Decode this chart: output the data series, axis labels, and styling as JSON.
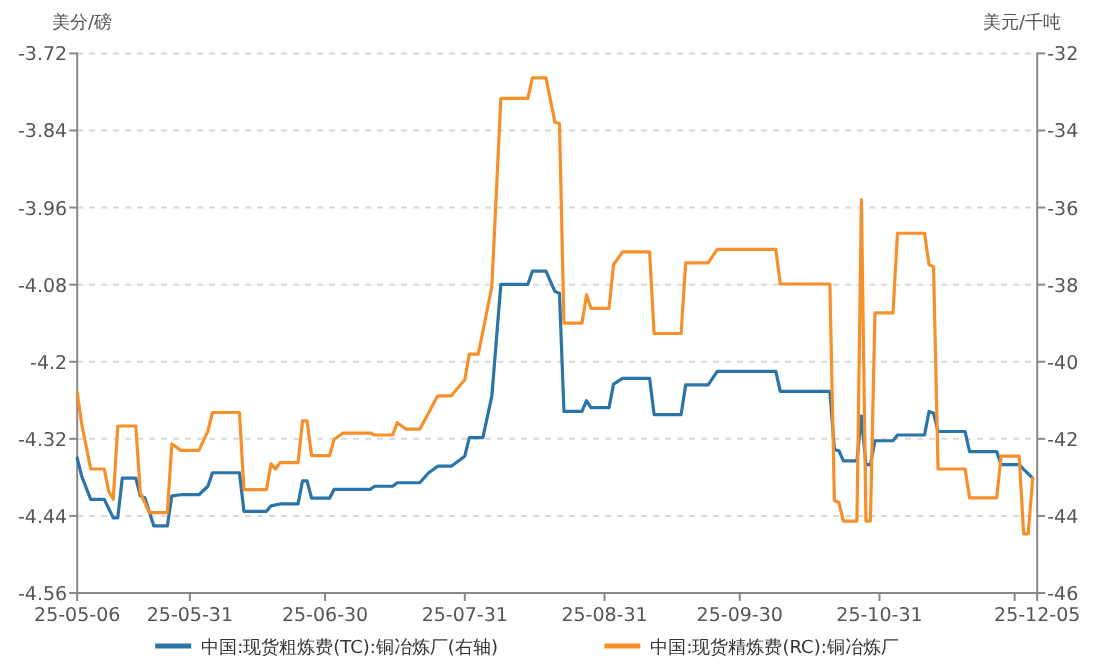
{
  "chart_data": {
    "type": "line",
    "ylabel": "美分/磅",
    "y2label": "美元/千吨",
    "xlim": [
      "--05-06",
      "--12-05"
    ],
    "xticks": [
      {
        "value": "--05-06",
        "label": "25-05-06"
      },
      {
        "value": "--05-31",
        "label": "25-05-31"
      },
      {
        "value": "--06-30",
        "label": "25-06-30"
      },
      {
        "value": "--07-31",
        "label": "25-07-31"
      },
      {
        "value": "--08-31",
        "label": "25-08-31"
      },
      {
        "value": "--09-30",
        "label": "25-09-30"
      },
      {
        "value": "--10-31",
        "label": "25-10-31"
      },
      {
        "value": "--11-30",
        "label": null
      },
      {
        "value": "--12-05",
        "label": "25-12-05"
      }
    ],
    "ylim": [
      -4.56,
      -3.72
    ],
    "yticks": [
      -4.56,
      -4.44,
      -4.32,
      -4.2,
      -4.08,
      -3.96,
      -3.84,
      -3.72
    ],
    "y2lim": [
      -46,
      -32
    ],
    "y2ticks": [
      -46,
      -44,
      -42,
      -40,
      -38,
      -36,
      -34,
      -32
    ],
    "grid": "y",
    "legend": "bottom",
    "series": [
      {
        "name": "中国:现货粗炼费(TC):铜冶炼厂(右轴)",
        "color": "#2a74a8",
        "axis": "y2",
        "x": [
          "--05-06",
          "--05-07",
          "--05-09",
          "--05-12",
          "--05-14",
          "--05-15",
          "--05-16",
          "--05-19",
          "--05-20",
          "--05-21",
          "--05-23",
          "--05-26",
          "--05-27",
          "--05-29",
          "--06-02",
          "--06-04",
          "--06-05",
          "--06-11",
          "--06-12",
          "--06-17",
          "--06-18",
          "--06-20",
          "--06-24",
          "--06-25",
          "--06-26",
          "--06-27",
          "--07-01",
          "--07-02",
          "--07-10",
          "--07-11",
          "--07-15",
          "--07-16",
          "--07-21",
          "--07-23",
          "--07-25",
          "--07-28",
          "--07-31",
          "--08-01",
          "--08-04",
          "--08-06",
          "--08-08",
          "--08-14",
          "--08-15",
          "--08-18",
          "--08-20",
          "--08-21",
          "--08-22",
          "--08-26",
          "--08-27",
          "--08-28",
          "--09-01",
          "--09-02",
          "--09-04",
          "--09-10",
          "--09-11",
          "--09-17",
          "--09-18",
          "--09-23",
          "--09-25",
          "--10-08",
          "--10-09",
          "--10-20",
          "--10-21",
          "--10-22",
          "--10-23",
          "--10-26",
          "--10-27",
          "--10-28",
          "--10-29",
          "--10-30",
          "--11-03",
          "--11-04",
          "--11-10",
          "--11-11",
          "--11-12",
          "--11-13",
          "--11-19",
          "--11-20",
          "--11-26",
          "--11-27",
          "--12-01",
          "--12-02",
          "--12-04"
        ],
        "values": [
          -42.5,
          -42.97,
          -43.57,
          -43.57,
          -44.05,
          -44.05,
          -43.02,
          -43.02,
          -43.48,
          -43.53,
          -44.26,
          -44.26,
          -43.48,
          -43.45,
          -43.45,
          -43.23,
          -42.88,
          -42.88,
          -43.88,
          -43.88,
          -43.74,
          -43.69,
          -43.69,
          -43.09,
          -43.09,
          -43.54,
          -43.54,
          -43.31,
          -43.31,
          -43.23,
          -43.23,
          -43.14,
          -43.14,
          -42.88,
          -42.71,
          -42.71,
          -42.45,
          -41.97,
          -41.97,
          -40.89,
          -37.99,
          -37.99,
          -37.65,
          -37.65,
          -38.18,
          -38.22,
          -41.29,
          -41.29,
          -41.01,
          -41.19,
          -41.19,
          -40.58,
          -40.43,
          -40.43,
          -41.37,
          -41.37,
          -40.6,
          -40.6,
          -40.25,
          -40.25,
          -40.77,
          -40.77,
          -42.28,
          -42.31,
          -42.57,
          -42.57,
          -41.41,
          -42.67,
          -42.67,
          -42.05,
          -42.05,
          -41.9,
          -41.9,
          -41.29,
          -41.33,
          -41.81,
          -41.81,
          -42.33,
          -42.33,
          -42.67,
          -42.67,
          -42.79,
          -43.02
        ]
      },
      {
        "name": "中国:现货精炼费(RC):铜冶炼厂",
        "color": "#f7902a",
        "x": [
          "--05-06",
          "--05-07",
          "--05-09",
          "--05-12",
          "--05-13",
          "--05-14",
          "--05-15",
          "--05-19",
          "--05-20",
          "--05-22",
          "--05-26",
          "--05-27",
          "--05-29",
          "--06-02",
          "--06-04",
          "--06-05",
          "--06-11",
          "--06-12",
          "--06-17",
          "--06-18",
          "--06-19",
          "--06-20",
          "--06-24",
          "--06-25",
          "--06-26",
          "--06-27",
          "--07-01",
          "--07-02",
          "--07-04",
          "--07-10",
          "--07-11",
          "--07-15",
          "--07-16",
          "--07-18",
          "--07-21",
          "--07-23",
          "--07-25",
          "--07-28",
          "--07-31",
          "--08-01",
          "--08-03",
          "--08-06",
          "--08-08",
          "--08-14",
          "--08-15",
          "--08-18",
          "--08-20",
          "--08-21",
          "--08-22",
          "--08-26",
          "--08-27",
          "--08-28",
          "--09-01",
          "--09-02",
          "--09-04",
          "--09-10",
          "--09-11",
          "--09-17",
          "--09-18",
          "--09-23",
          "--09-25",
          "--10-08",
          "--10-09",
          "--10-20",
          "--10-21",
          "--10-22",
          "--10-23",
          "--10-26",
          "--10-27",
          "--10-28",
          "--10-29",
          "--10-30",
          "--11-03",
          "--11-04",
          "--11-10",
          "--11-11",
          "--11-12",
          "--11-13",
          "--11-19",
          "--11-20",
          "--11-26",
          "--11-27",
          "--12-01",
          "--12-02",
          "--12-03",
          "--12-04"
        ],
        "values": [
          -4.248,
          -4.297,
          -4.367,
          -4.367,
          -4.402,
          -4.414,
          -4.3,
          -4.3,
          -4.404,
          -4.435,
          -4.435,
          -4.328,
          -4.338,
          -4.338,
          -4.308,
          -4.279,
          -4.279,
          -4.399,
          -4.399,
          -4.359,
          -4.367,
          -4.357,
          -4.357,
          -4.292,
          -4.292,
          -4.346,
          -4.346,
          -4.321,
          -4.311,
          -4.311,
          -4.314,
          -4.314,
          -4.295,
          -4.305,
          -4.305,
          -4.279,
          -4.253,
          -4.253,
          -4.228,
          -4.188,
          -4.188,
          -4.083,
          -3.79,
          -3.79,
          -3.758,
          -3.758,
          -3.827,
          -3.829,
          -4.14,
          -4.14,
          -4.096,
          -4.117,
          -4.117,
          -4.049,
          -4.029,
          -4.029,
          -4.156,
          -4.156,
          -4.046,
          -4.046,
          -4.025,
          -4.025,
          -4.079,
          -4.079,
          -4.416,
          -4.419,
          -4.448,
          -4.448,
          -3.948,
          -4.448,
          -4.448,
          -4.124,
          -4.124,
          -4.0,
          -4.0,
          -4.049,
          -4.052,
          -4.367,
          -4.367,
          -4.412,
          -4.412,
          -4.347,
          -4.347,
          -4.468,
          -4.468,
          -4.381
        ]
      }
    ]
  }
}
